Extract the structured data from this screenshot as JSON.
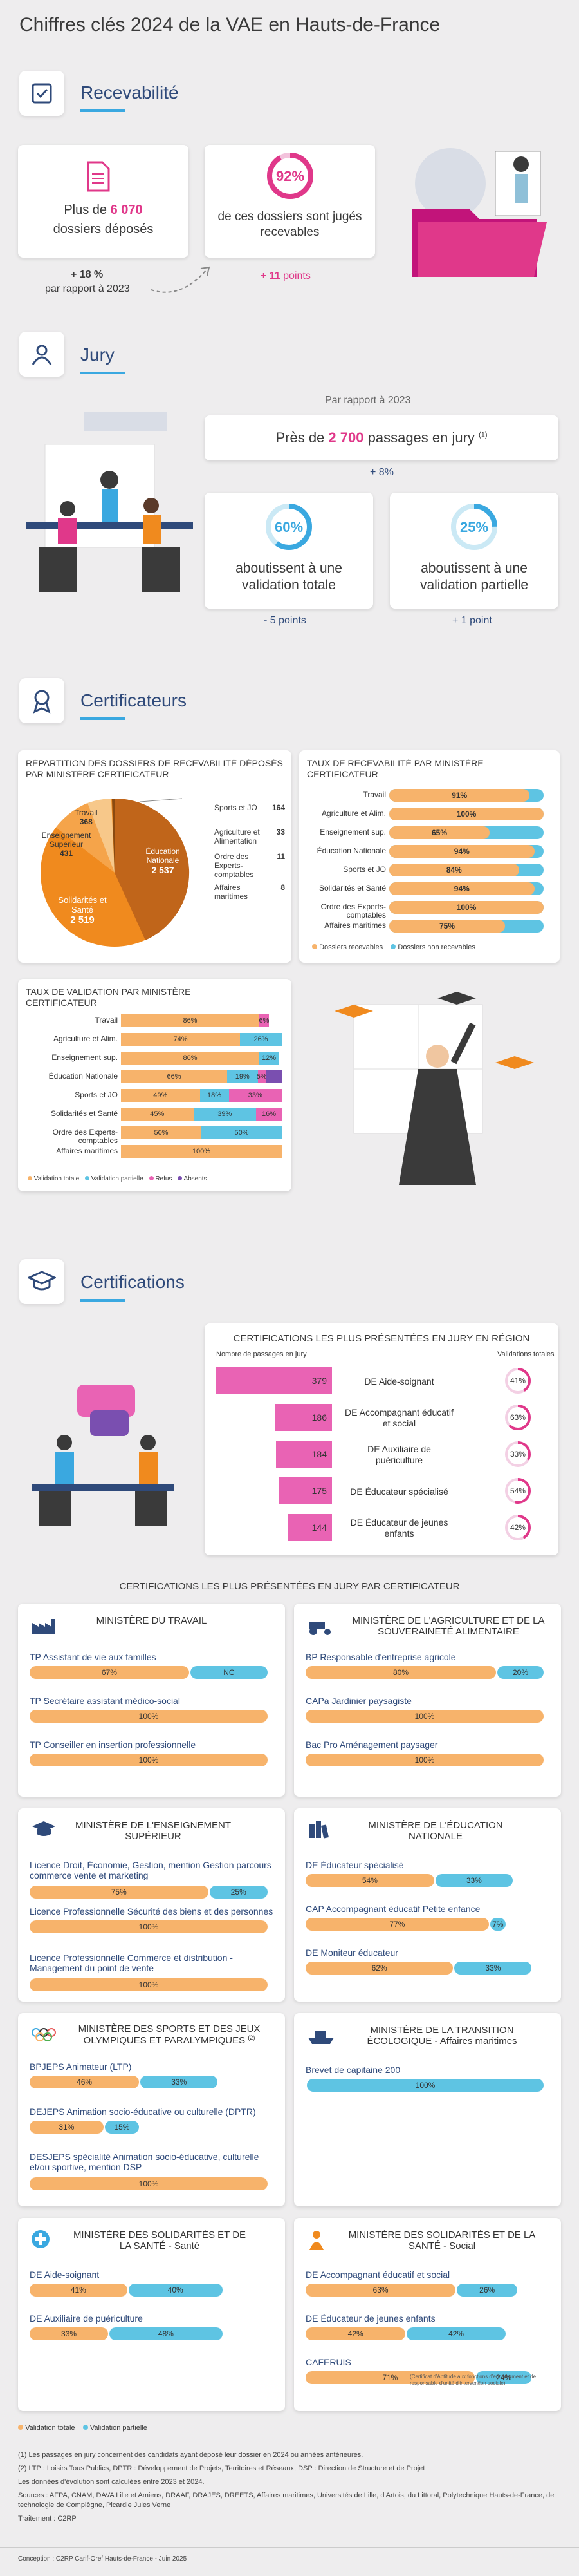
{
  "title": "Chiffres clés 2024 de la VAE en Hauts-de-France",
  "recevabilite": {
    "label": "Recevabilité",
    "card1_prefix": "Plus de",
    "card1_value": "6 070",
    "card1_suffix": "dossiers déposés",
    "card1_delta": "+ 18 %",
    "card1_delta_suffix": "par rapport à 2023",
    "card2_value": "92%",
    "card2_text": "de ces dossiers sont jugés recevables",
    "card2_delta": "+ 11",
    "card2_delta_suffix": "points"
  },
  "jury": {
    "label": "Jury",
    "ref": "Par rapport à 2023",
    "passages_prefix": "Près de",
    "passages_value": "2 700",
    "passages_suffix": "passages en jury",
    "passages_sup": "(1)",
    "passages_delta": "+ 8%",
    "total_value": "60%",
    "total_text": "aboutissent à une validation totale",
    "total_delta": "- 5 points",
    "partial_value": "25%",
    "partial_text": "aboutissent à une validation partielle",
    "partial_delta": "+ 1 point"
  },
  "certificateurs": {
    "label": "Certificateurs",
    "pie_title": "RÉPARTITION DES DOSSIERS DE RECEVABILITÉ DÉPOSÉS PAR MINISTÈRE CERTIFICATEUR",
    "pie": [
      {
        "name": "Éducation Nationale",
        "value": "2 537",
        "color": "#c0651a"
      },
      {
        "name": "Solidarités et Santé",
        "value": "2 519",
        "color": "#f08a1e"
      },
      {
        "name": "Enseignement Supérieur",
        "value": "431",
        "color": "#f5a44a"
      },
      {
        "name": "Travail",
        "value": "368",
        "color": "#f7c88a"
      }
    ],
    "pie_side": [
      {
        "name": "Sports et JO",
        "value": "164"
      },
      {
        "name": "Agriculture et Alimentation",
        "value": "33"
      },
      {
        "name": "Ordre des Experts-comptables",
        "value": "11"
      },
      {
        "name": "Affaires maritimes",
        "value": "8"
      }
    ],
    "rec_title": "TAUX DE RECEVABILITÉ PAR MINISTÈRE CERTIFICATEUR",
    "rec_rows": [
      {
        "name": "Travail",
        "value": "91%",
        "pct": 91
      },
      {
        "name": "Agriculture et Alim.",
        "value": "100%",
        "pct": 100
      },
      {
        "name": "Enseignement sup.",
        "value": "65%",
        "pct": 65
      },
      {
        "name": "Éducation Nationale",
        "value": "94%",
        "pct": 94
      },
      {
        "name": "Sports et JO",
        "value": "84%",
        "pct": 84
      },
      {
        "name": "Solidarités et Santé",
        "value": "94%",
        "pct": 94
      },
      {
        "name": "Ordre des Experts-comptables",
        "value": "100%",
        "pct": 100
      },
      {
        "name": "Affaires maritimes",
        "value": "75%",
        "pct": 75
      }
    ],
    "rec_legend1": "Dossiers recevables",
    "rec_legend2": "Dossiers non recevables",
    "val_title": "TAUX DE VALIDATION PAR MINISTÈRE CERTIFICATEUR",
    "val_rows": [
      {
        "name": "Travail",
        "t": 86,
        "p": 0,
        "r": 6,
        "a": 0,
        "lt": "86%",
        "lp": "",
        "lr": "6%",
        "la": ""
      },
      {
        "name": "Agriculture et Alim.",
        "t": 74,
        "p": 26,
        "r": 0,
        "a": 0,
        "lt": "74%",
        "lp": "26%",
        "lr": "",
        "la": ""
      },
      {
        "name": "Enseignement sup.",
        "t": 86,
        "p": 12,
        "r": 0,
        "a": 0,
        "lt": "86%",
        "lp": "12%",
        "lr": "",
        "la": ""
      },
      {
        "name": "Éducation Nationale",
        "t": 66,
        "p": 19,
        "r": 5,
        "a": 10,
        "lt": "66%",
        "lp": "19%",
        "lr": "5%",
        "la": ""
      },
      {
        "name": "Sports et JO",
        "t": 49,
        "p": 18,
        "r": 33,
        "a": 0,
        "lt": "49%",
        "lp": "18%",
        "lr": "33%",
        "la": ""
      },
      {
        "name": "Solidarités et Santé",
        "t": 45,
        "p": 39,
        "r": 16,
        "a": 0,
        "lt": "45%",
        "lp": "39%",
        "lr": "16%",
        "la": ""
      },
      {
        "name": "Ordre des Experts-comptables",
        "t": 50,
        "p": 50,
        "r": 0,
        "a": 0,
        "lt": "50%",
        "lp": "50%",
        "lr": "",
        "la": ""
      },
      {
        "name": "Affaires maritimes",
        "t": 100,
        "p": 0,
        "r": 0,
        "a": 0,
        "lt": "100%",
        "lp": "",
        "lr": "",
        "la": ""
      }
    ],
    "val_legend": [
      "Validation totale",
      "Validation partielle",
      "Refus",
      "Absents"
    ]
  },
  "certifications": {
    "label": "Certifications",
    "region_title": "CERTIFICATIONS LES PLUS PRÉSENTÉES EN JURY EN RÉGION",
    "col1": "Nombre de passages en jury",
    "col2": "Validations totales",
    "region_rows": [
      {
        "count": "379",
        "n": 379,
        "name": "DE Aide-soignant",
        "pct": "41%",
        "p": 41
      },
      {
        "count": "186",
        "n": 186,
        "name": "DE Accompagnant éducatif et social",
        "pct": "63%",
        "p": 63
      },
      {
        "count": "184",
        "n": 184,
        "name": "DE Auxiliaire de puériculture",
        "pct": "33%",
        "p": 33
      },
      {
        "count": "175",
        "n": 175,
        "name": "DE Éducateur spécialisé",
        "pct": "54%",
        "p": 54
      },
      {
        "count": "144",
        "n": 144,
        "name": "DE Éducateur de jeunes enfants",
        "pct": "42%",
        "p": 42
      }
    ]
  },
  "ministries": {
    "title": "CERTIFICATIONS LES PLUS PRÉSENTÉES EN JURY PAR CERTIFICATEUR",
    "travail": {
      "name": "MINISTÈRE DU TRAVAIL",
      "items": [
        {
          "name": "TP Assistant de vie aux familles",
          "t": 67,
          "p": 33,
          "lt": "67%",
          "lp": "NC"
        },
        {
          "name": "TP Secrétaire assistant médico-social",
          "t": 100,
          "p": 0,
          "lt": "100%",
          "lp": ""
        },
        {
          "name": "TP Conseiller en insertion professionnelle",
          "t": 100,
          "p": 0,
          "lt": "100%",
          "lp": ""
        }
      ]
    },
    "agri": {
      "name": "MINISTÈRE DE L'AGRICULTURE ET DE LA SOUVERAINETÉ ALIMENTAIRE",
      "items": [
        {
          "name": "BP Responsable d'entreprise agricole",
          "t": 80,
          "p": 20,
          "lt": "80%",
          "lp": "20%"
        },
        {
          "name": "CAPa Jardinier paysagiste",
          "t": 100,
          "p": 0,
          "lt": "100%",
          "lp": ""
        },
        {
          "name": "Bac Pro Aménagement paysager",
          "t": 100,
          "p": 0,
          "lt": "100%",
          "lp": ""
        }
      ]
    },
    "sup": {
      "name": "MINISTÈRE DE L'ENSEIGNEMENT SUPÉRIEUR",
      "items": [
        {
          "name": "Licence Droit, Économie, Gestion, mention Gestion parcours commerce vente et marketing",
          "t": 75,
          "p": 25,
          "lt": "75%",
          "lp": "25%"
        },
        {
          "name": "Licence Professionnelle Sécurité des biens et des personnes",
          "t": 100,
          "p": 0,
          "lt": "100%",
          "lp": ""
        },
        {
          "name": "Licence Professionnelle Commerce et distribution - Management du point de vente",
          "t": 100,
          "p": 0,
          "lt": "100%",
          "lp": ""
        }
      ]
    },
    "edu": {
      "name": "MINISTÈRE DE L'ÉDUCATION NATIONALE",
      "items": [
        {
          "name": "DE Éducateur spécialisé",
          "t": 54,
          "p": 33,
          "lt": "54%",
          "lp": "33%"
        },
        {
          "name": "CAP Accompagnant éducatif Petite enfance",
          "t": 77,
          "p": 7,
          "lt": "77%",
          "lp": "7%"
        },
        {
          "name": "DE Moniteur éducateur",
          "t": 62,
          "p": 33,
          "lt": "62%",
          "lp": "33%"
        }
      ]
    },
    "sports": {
      "name": "MINISTÈRE DES SPORTS ET DES JEUX OLYMPIQUES ET PARALYMPIQUES",
      "sup": "(2)",
      "items": [
        {
          "name": "BPJEPS Animateur (LTP)",
          "t": 46,
          "p": 33,
          "lt": "46%",
          "lp": "33%"
        },
        {
          "name": "DEJEPS Animation socio-éducative ou culturelle (DPTR)",
          "t": 31,
          "p": 15,
          "lt": "31%",
          "lp": "15%"
        },
        {
          "name": "DESJEPS spécialité Animation socio-éducative, culturelle et/ou sportive, mention DSP",
          "t": 100,
          "p": 0,
          "lt": "100%",
          "lp": ""
        }
      ]
    },
    "eco": {
      "name": "MINISTÈRE DE LA TRANSITION ÉCOLOGIQUE - Affaires maritimes",
      "items": [
        {
          "name": "Brevet de capitaine 200",
          "t": 0,
          "p": 100,
          "lt": "",
          "lp": "100%"
        }
      ]
    },
    "sante1": {
      "name": "MINISTÈRE DES SOLIDARITÉS ET DE LA SANTÉ - Santé",
      "items": [
        {
          "name": "DE Aide-soignant",
          "t": 41,
          "p": 40,
          "lt": "41%",
          "lp": "40%"
        },
        {
          "name": "DE Auxiliaire de puériculture",
          "t": 33,
          "p": 48,
          "lt": "33%",
          "lp": "48%"
        }
      ]
    },
    "sante2": {
      "name": "MINISTÈRE DES SOLIDARITÉS ET DE LA SANTÉ - Social",
      "items": [
        {
          "name": "DE Accompagnant éducatif et social",
          "t": 63,
          "p": 26,
          "lt": "63%",
          "lp": "26%"
        },
        {
          "name": "DE Éducateur de jeunes enfants",
          "t": 42,
          "p": 42,
          "lt": "42%",
          "lp": "42%"
        },
        {
          "name": "CAFERUIS",
          "t": 71,
          "p": 24,
          "lt": "71%",
          "lp": "24%"
        }
      ],
      "caferuis_note": "(Certificat d'Aptitude aux fonctions d'encadrement et de responsable d'unité d'intervention sociale)"
    },
    "legend_t": "Validation totale",
    "legend_p": "Validation partielle"
  },
  "footer": {
    "note1": "(1) Les passages en jury concernent des candidats ayant déposé leur dossier en 2024 ou années antérieures.",
    "note2": "(2) LTP : Loisirs Tous Publics, DPTR : Développement de Projets, Territoires et Réseaux, DSP : Direction de Structure et de Projet",
    "note3": "Les données d'évolution sont calculées entre 2023 et 2024.",
    "sources": "Sources : AFPA, CNAM, DAVA Lille et Amiens, DRAAF, DRAJES, DREETS, Affaires maritimes, Universités de Lille, d'Artois, du Littoral, Polytechnique Hauts-de-France, de technologie de Compiègne, Picardie Jules Verne",
    "traitement": "Traitement : C2RP",
    "conception": "Conception : C2RP Carif-Oref Hauts-de-France - Juin 2025"
  }
}
